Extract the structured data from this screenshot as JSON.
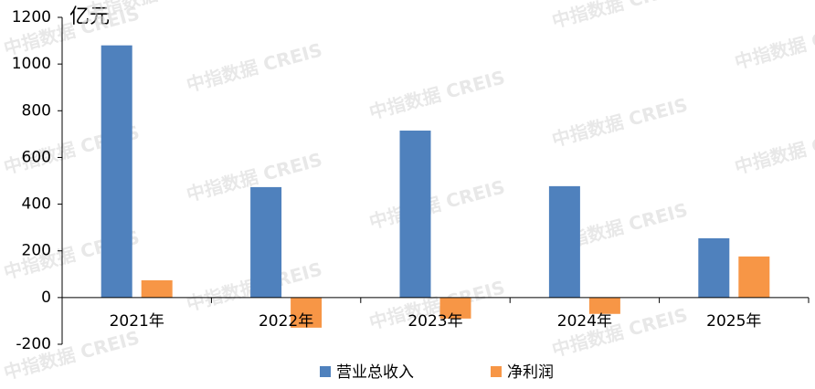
{
  "chart_data": {
    "type": "bar",
    "unit_label": "亿元",
    "watermark": "中指数据 CREIS",
    "categories": [
      "2021年",
      "2022年",
      "2023年",
      "2024年",
      "2025年"
    ],
    "series": [
      {
        "name": "营业总收入",
        "color": "#4f81bd",
        "values": [
          1080,
          473,
          715,
          477,
          254
        ]
      },
      {
        "name": "净利润",
        "color": "#f79646",
        "values": [
          74,
          -129,
          -90,
          -70,
          176
        ]
      }
    ],
    "ylim": [
      -200,
      1200
    ],
    "yticks": [
      -200,
      0,
      200,
      400,
      600,
      800,
      1000,
      1200
    ],
    "legend": "bottom"
  }
}
